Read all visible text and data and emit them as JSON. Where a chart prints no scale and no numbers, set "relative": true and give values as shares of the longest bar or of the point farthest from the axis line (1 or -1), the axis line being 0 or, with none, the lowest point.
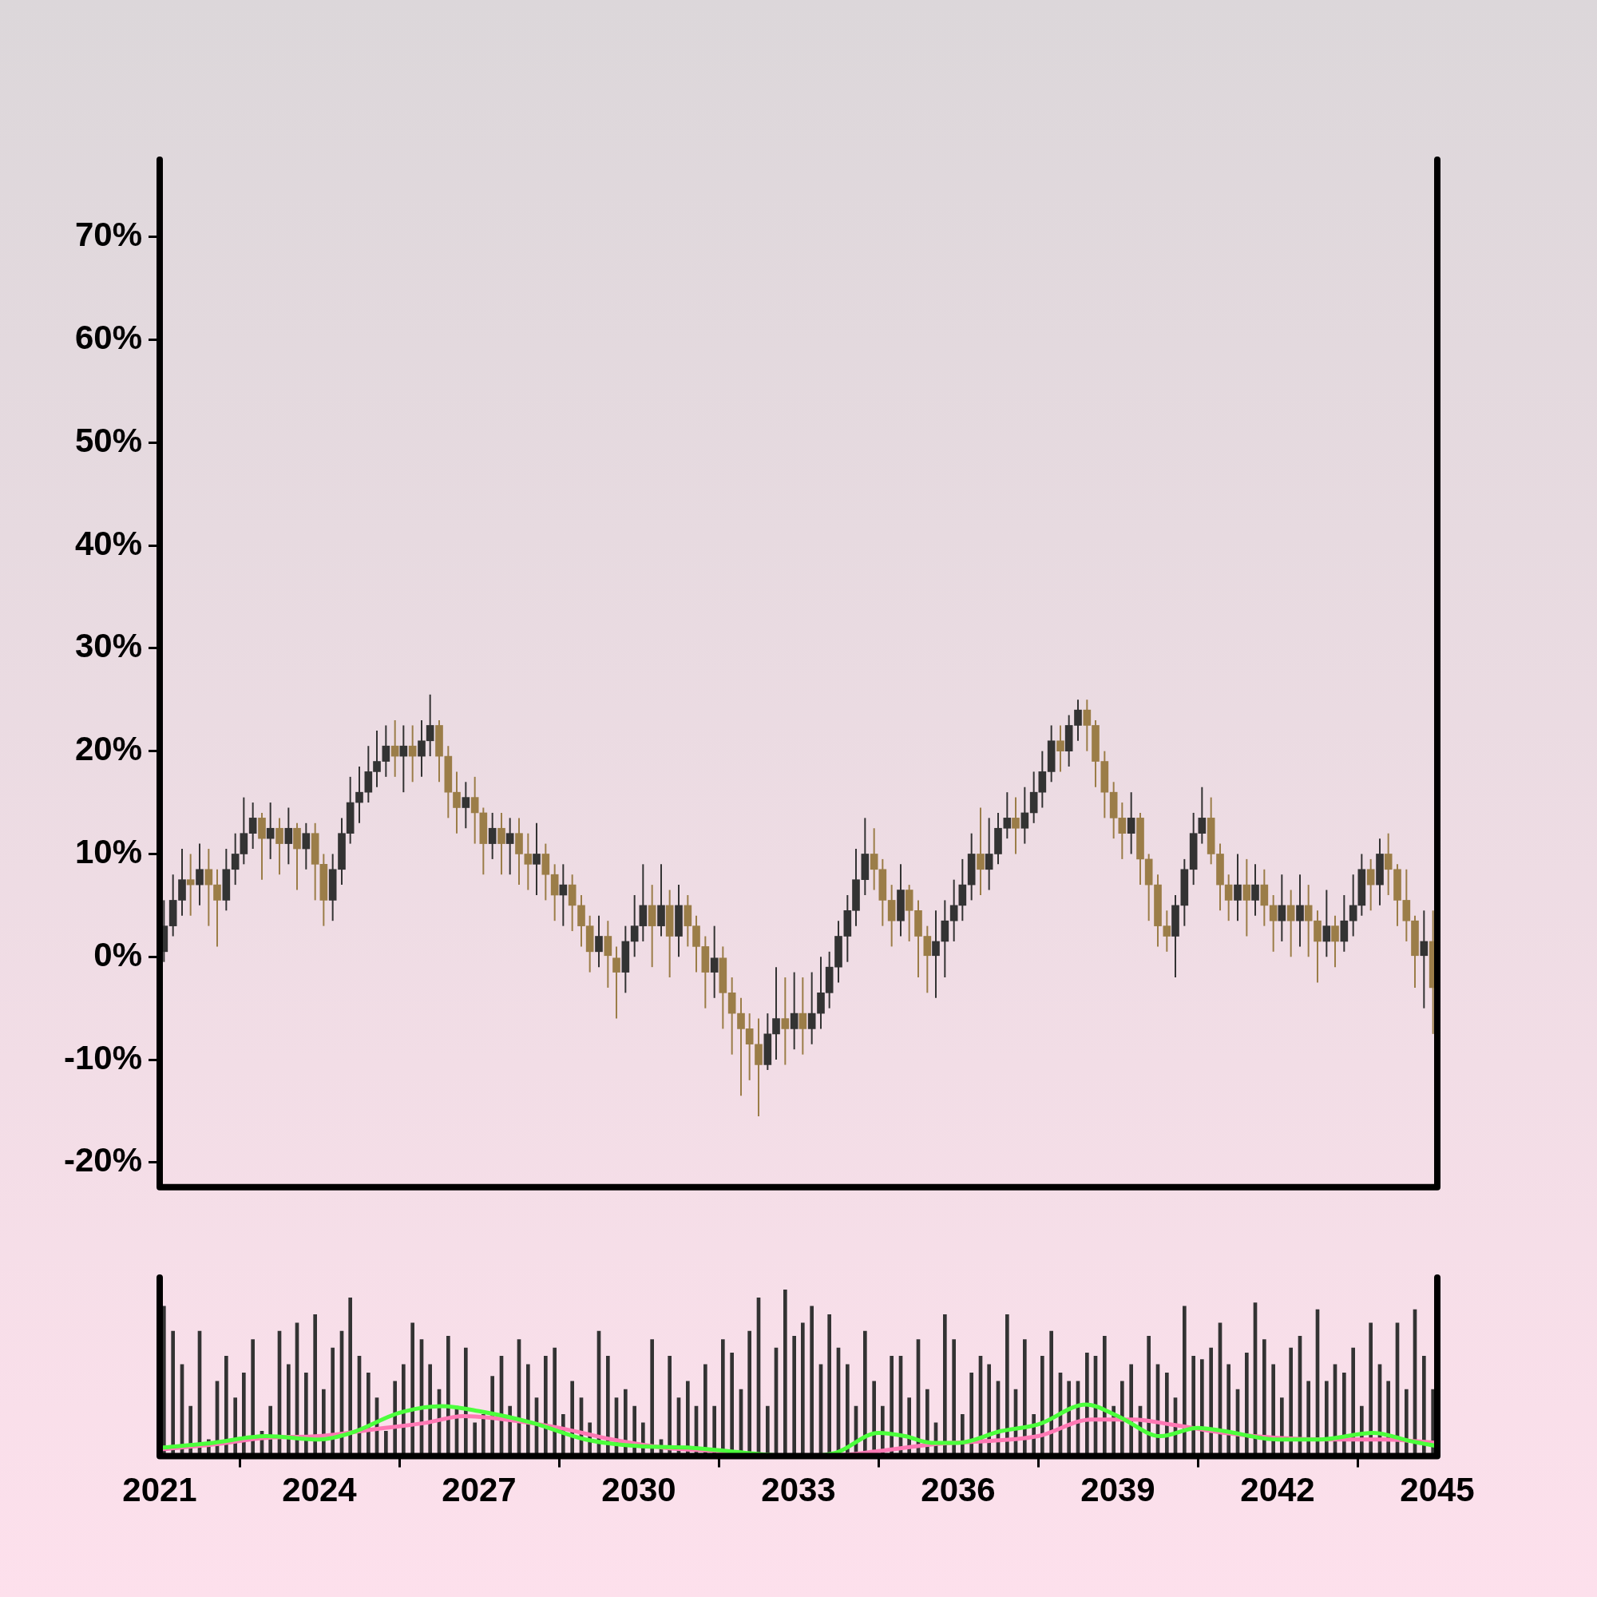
{
  "chart_data": [
    {
      "type": "candlestick",
      "x": [
        2021.08,
        2021.25,
        2021.42,
        2021.58,
        2021.75,
        2021.92,
        2022.08,
        2022.25,
        2022.42,
        2022.58,
        2022.75,
        2022.92,
        2023.08,
        2023.25,
        2023.42,
        2023.58,
        2023.75,
        2023.92,
        2024.08,
        2024.25,
        2024.42,
        2024.58,
        2024.75,
        2024.92,
        2025.08,
        2025.25,
        2025.42,
        2025.58,
        2025.75,
        2025.92,
        2026.08,
        2026.25,
        2026.42,
        2026.58,
        2026.75,
        2026.92,
        2027.08,
        2027.25,
        2027.42,
        2027.58,
        2027.75,
        2027.92,
        2028.08,
        2028.25,
        2028.42,
        2028.58,
        2028.75,
        2028.92,
        2029.08,
        2029.25,
        2029.42,
        2029.58,
        2029.75,
        2029.92,
        2030.08,
        2030.25,
        2030.42,
        2030.58,
        2030.75,
        2030.92,
        2031.08,
        2031.25,
        2031.42,
        2031.58,
        2031.75,
        2031.92,
        2032.08,
        2032.25,
        2032.42,
        2032.58,
        2032.75,
        2032.92,
        2033.08,
        2033.25,
        2033.42,
        2033.58,
        2033.75,
        2033.92,
        2034.08,
        2034.25,
        2034.42,
        2034.58,
        2034.75,
        2034.92,
        2035.08,
        2035.25,
        2035.42,
        2035.58,
        2035.75,
        2035.92,
        2036.08,
        2036.25,
        2036.42,
        2036.58,
        2036.75,
        2036.92,
        2037.08,
        2037.25,
        2037.42,
        2037.58,
        2037.75,
        2037.92,
        2038.08,
        2038.25,
        2038.42,
        2038.58,
        2038.75,
        2038.92,
        2039.08,
        2039.25,
        2039.42,
        2039.58,
        2039.75,
        2039.92,
        2040.08,
        2040.25,
        2040.42,
        2040.58,
        2040.75,
        2040.92,
        2041.08,
        2041.25,
        2041.42,
        2041.58,
        2041.75,
        2041.92,
        2042.08,
        2042.25,
        2042.42,
        2042.58,
        2042.75,
        2042.92,
        2043.08,
        2043.25,
        2043.42,
        2043.58,
        2043.75,
        2043.92,
        2044.08,
        2044.25,
        2044.42,
        2044.58,
        2044.75,
        2044.92
      ],
      "ohlc": [
        [
          0.5,
          5.5,
          -0.5,
          3
        ],
        [
          3,
          8,
          2,
          5.5
        ],
        [
          5.5,
          10.5,
          4,
          7.5
        ],
        [
          7.5,
          10,
          4,
          7
        ],
        [
          7,
          11,
          5,
          8.5
        ],
        [
          8.5,
          10.5,
          3,
          7
        ],
        [
          7,
          8.5,
          1,
          5.5
        ],
        [
          5.5,
          10.5,
          4.5,
          8.5
        ],
        [
          8.5,
          12,
          7,
          10
        ],
        [
          10,
          15.5,
          9,
          12
        ],
        [
          12,
          15,
          10.5,
          13.5
        ],
        [
          13.5,
          14,
          7.5,
          11.5
        ],
        [
          11.5,
          15,
          9.5,
          12.5
        ],
        [
          12.5,
          13.5,
          8,
          11
        ],
        [
          11,
          14.5,
          9,
          12.5
        ],
        [
          12.5,
          13,
          6.5,
          10.5
        ],
        [
          10.5,
          13,
          8.5,
          12
        ],
        [
          12,
          13,
          5.5,
          9
        ],
        [
          9,
          10,
          3,
          5.5
        ],
        [
          5.5,
          10,
          3.5,
          8.5
        ],
        [
          8.5,
          13.5,
          7,
          12
        ],
        [
          12,
          17.5,
          11,
          15
        ],
        [
          15,
          18.5,
          13,
          16
        ],
        [
          16,
          20.5,
          15,
          18
        ],
        [
          18,
          22,
          16.5,
          19
        ],
        [
          19,
          22.5,
          17.5,
          20.5
        ],
        [
          20.5,
          23,
          17.5,
          19.5
        ],
        [
          19.5,
          22.5,
          16,
          20.5
        ],
        [
          20.5,
          22.5,
          17,
          19.5
        ],
        [
          19.5,
          23,
          17.5,
          21
        ],
        [
          21,
          25.5,
          19.5,
          22.5
        ],
        [
          22.5,
          23,
          17,
          19.5
        ],
        [
          19.5,
          20.5,
          13.5,
          16
        ],
        [
          16,
          18,
          12,
          14.5
        ],
        [
          14.5,
          17,
          12.5,
          15.5
        ],
        [
          15.5,
          17.5,
          11,
          14
        ],
        [
          14,
          14.5,
          8,
          11
        ],
        [
          11,
          14,
          9.5,
          12.5
        ],
        [
          12.5,
          14,
          8,
          11
        ],
        [
          11,
          13.5,
          8,
          12
        ],
        [
          12,
          13.5,
          7,
          10
        ],
        [
          10,
          12,
          6.5,
          9
        ],
        [
          9,
          13,
          6,
          10
        ],
        [
          10,
          11,
          5.5,
          8
        ],
        [
          8,
          9,
          3.5,
          6
        ],
        [
          6,
          9,
          3,
          7
        ],
        [
          7,
          8,
          2.5,
          5
        ],
        [
          5,
          6,
          1,
          3
        ],
        [
          3,
          4,
          -1.5,
          0.5
        ],
        [
          0.5,
          4,
          -1,
          2
        ],
        [
          2,
          3.5,
          -3,
          0
        ],
        [
          0,
          1,
          -6,
          -1.5
        ],
        [
          -1.5,
          3,
          -3.5,
          1.5
        ],
        [
          1.5,
          6,
          0,
          3
        ],
        [
          3,
          9,
          1.5,
          5
        ],
        [
          5,
          7,
          -1,
          3
        ],
        [
          3,
          9,
          2,
          5
        ],
        [
          5,
          6.5,
          -2,
          2
        ],
        [
          2,
          7,
          0,
          5
        ],
        [
          5,
          6,
          1,
          3
        ],
        [
          3,
          4,
          -1.5,
          1
        ],
        [
          1,
          2,
          -5,
          -1.5
        ],
        [
          -1.5,
          3,
          -4,
          0
        ],
        [
          0,
          1,
          -7,
          -3.5
        ],
        [
          -3.5,
          -2,
          -9.5,
          -5.5
        ],
        [
          -5.5,
          -4,
          -13.5,
          -7
        ],
        [
          -7,
          -5.5,
          -12,
          -8.5
        ],
        [
          -8.5,
          -6,
          -15.5,
          -10.5
        ],
        [
          -10.5,
          -5.5,
          -11,
          -7.5
        ],
        [
          -7.5,
          -1,
          -10,
          -6
        ],
        [
          -6,
          -2,
          -10.5,
          -7
        ],
        [
          -7,
          -1.5,
          -9,
          -5.5
        ],
        [
          -5.5,
          -2,
          -9.5,
          -7
        ],
        [
          -7,
          -1.5,
          -8.5,
          -5.5
        ],
        [
          -5.5,
          0,
          -7,
          -3.5
        ],
        [
          -3.5,
          0.5,
          -5,
          -1
        ],
        [
          -1,
          3.5,
          -2.5,
          2
        ],
        [
          2,
          6,
          -0.5,
          4.5
        ],
        [
          4.5,
          10.5,
          3,
          7.5
        ],
        [
          7.5,
          13.5,
          6,
          10
        ],
        [
          10,
          12.5,
          6.5,
          8.5
        ],
        [
          8.5,
          9.5,
          3,
          5.5
        ],
        [
          5.5,
          7,
          1,
          3.5
        ],
        [
          3.5,
          9,
          2,
          6.5
        ],
        [
          6.5,
          7,
          1.5,
          4.5
        ],
        [
          4.5,
          5.5,
          -2,
          2
        ],
        [
          2,
          3,
          -3.5,
          0
        ],
        [
          0,
          4.5,
          -4,
          1.5
        ],
        [
          1.5,
          5.5,
          -2,
          3.5
        ],
        [
          3.5,
          7.5,
          1.5,
          5
        ],
        [
          5,
          9.5,
          3.5,
          7
        ],
        [
          7,
          12,
          5.5,
          10
        ],
        [
          10,
          14.5,
          6,
          8.5
        ],
        [
          8.5,
          13.5,
          6.5,
          10
        ],
        [
          10,
          14,
          9,
          12.5
        ],
        [
          12.5,
          16,
          11.5,
          13.5
        ],
        [
          13.5,
          15.5,
          10,
          12.5
        ],
        [
          12.5,
          16.5,
          11,
          14
        ],
        [
          14,
          18,
          13,
          16
        ],
        [
          16,
          20,
          14.5,
          18
        ],
        [
          18,
          22.5,
          17,
          21
        ],
        [
          21,
          22.5,
          18,
          20
        ],
        [
          20,
          23.5,
          18.5,
          22.5
        ],
        [
          22.5,
          25,
          21,
          24
        ],
        [
          24,
          25,
          20,
          22.5
        ],
        [
          22.5,
          23,
          16.5,
          19
        ],
        [
          19,
          20,
          13.5,
          16
        ],
        [
          16,
          17,
          11.5,
          13.5
        ],
        [
          13.5,
          15,
          9.5,
          12
        ],
        [
          12,
          16,
          10,
          13.5
        ],
        [
          13.5,
          14,
          7,
          9.5
        ],
        [
          9.5,
          10,
          3.5,
          7
        ],
        [
          7,
          8,
          1,
          3
        ],
        [
          3,
          4.5,
          0.5,
          2
        ],
        [
          2,
          6,
          -2,
          5
        ],
        [
          5,
          9.5,
          3,
          8.5
        ],
        [
          8.5,
          14,
          7,
          12
        ],
        [
          12,
          16.5,
          11,
          13.5
        ],
        [
          13.5,
          15.5,
          9,
          10
        ],
        [
          10,
          11,
          4.5,
          7
        ],
        [
          7,
          8,
          3.5,
          5.5
        ],
        [
          5.5,
          10,
          3.5,
          7
        ],
        [
          7,
          9.5,
          2,
          5.5
        ],
        [
          5.5,
          9,
          4,
          7
        ],
        [
          7,
          8.5,
          3,
          5
        ],
        [
          5,
          6,
          0.5,
          3.5
        ],
        [
          3.5,
          8,
          1.5,
          5
        ],
        [
          5,
          6.5,
          0,
          3.5
        ],
        [
          3.5,
          8,
          1,
          5
        ],
        [
          5,
          7,
          0,
          3.5
        ],
        [
          3.5,
          4.5,
          -2.5,
          1.5
        ],
        [
          1.5,
          6.5,
          0,
          3
        ],
        [
          3,
          4,
          -1,
          1.5
        ],
        [
          1.5,
          6,
          0.5,
          3.5
        ],
        [
          3.5,
          8,
          2,
          5
        ],
        [
          5,
          10,
          4,
          8.5
        ],
        [
          8.5,
          9.5,
          4.5,
          7
        ],
        [
          7,
          11.5,
          5,
          10
        ],
        [
          10,
          12,
          6,
          8.5
        ],
        [
          8.5,
          9,
          3,
          5.5
        ],
        [
          5.5,
          8.5,
          1.5,
          3.5
        ],
        [
          3.5,
          4,
          -3,
          0
        ],
        [
          0,
          4.5,
          -5,
          1.5
        ],
        [
          1.5,
          4.5,
          -7.5,
          -3
        ]
      ],
      "colors": [
        "#333333",
        "#333333",
        "#333333",
        "#9b7d48",
        "#333333",
        "#9b7d48",
        "#9b7d48",
        "#333333",
        "#333333",
        "#333333",
        "#333333",
        "#9b7d48",
        "#333333",
        "#9b7d48",
        "#333333",
        "#9b7d48",
        "#333333",
        "#9b7d48",
        "#9b7d48",
        "#333333",
        "#333333",
        "#333333",
        "#333333",
        "#333333",
        "#333333",
        "#333333",
        "#9b7d48",
        "#333333",
        "#9b7d48",
        "#333333",
        "#333333",
        "#9b7d48",
        "#9b7d48",
        "#9b7d48",
        "#333333",
        "#9b7d48",
        "#9b7d48",
        "#333333",
        "#9b7d48",
        "#333333",
        "#9b7d48",
        "#9b7d48",
        "#333333",
        "#9b7d48",
        "#9b7d48",
        "#333333",
        "#9b7d48",
        "#9b7d48",
        "#9b7d48",
        "#333333",
        "#9b7d48",
        "#9b7d48",
        "#333333",
        "#333333",
        "#333333",
        "#9b7d48",
        "#333333",
        "#9b7d48",
        "#333333",
        "#9b7d48",
        "#9b7d48",
        "#9b7d48",
        "#333333",
        "#9b7d48",
        "#9b7d48",
        "#9b7d48",
        "#9b7d48",
        "#9b7d48",
        "#333333",
        "#333333",
        "#9b7d48",
        "#333333",
        "#9b7d48",
        "#333333",
        "#333333",
        "#333333",
        "#333333",
        "#333333",
        "#333333",
        "#333333",
        "#9b7d48",
        "#9b7d48",
        "#9b7d48",
        "#333333",
        "#9b7d48",
        "#9b7d48",
        "#9b7d48",
        "#333333",
        "#333333",
        "#333333",
        "#333333",
        "#333333",
        "#9b7d48",
        "#333333",
        "#333333",
        "#333333",
        "#9b7d48",
        "#333333",
        "#333333",
        "#333333",
        "#333333",
        "#9b7d48",
        "#333333",
        "#333333",
        "#9b7d48",
        "#9b7d48",
        "#9b7d48",
        "#9b7d48",
        "#9b7d48",
        "#333333",
        "#9b7d48",
        "#9b7d48",
        "#9b7d48",
        "#9b7d48",
        "#333333",
        "#333333",
        "#333333",
        "#333333",
        "#9b7d48",
        "#9b7d48",
        "#9b7d48",
        "#333333",
        "#9b7d48",
        "#333333",
        "#9b7d48",
        "#9b7d48",
        "#333333",
        "#9b7d48",
        "#333333",
        "#9b7d48",
        "#9b7d48",
        "#333333",
        "#9b7d48",
        "#333333",
        "#333333",
        "#333333",
        "#9b7d48",
        "#333333",
        "#9b7d48",
        "#9b7d48",
        "#9b7d48",
        "#9b7d48",
        "#333333",
        "#9b7d48"
      ],
      "xlim": [
        2021,
        2045
      ],
      "ylim": [
        -22.4,
        77.5
      ],
      "yticks": [
        {
          "value": -20,
          "label": "-20%"
        },
        {
          "value": -10,
          "label": "-10%"
        },
        {
          "value": 0,
          "label": "0%"
        },
        {
          "value": 10,
          "label": "10%"
        },
        {
          "value": 20,
          "label": "20%"
        },
        {
          "value": 30,
          "label": "30%"
        },
        {
          "value": 40,
          "label": "40%"
        },
        {
          "value": 50,
          "label": "50%"
        },
        {
          "value": 60,
          "label": "60%"
        },
        {
          "value": 70,
          "label": "70%"
        }
      ],
      "tick_labels": "y"
    },
    {
      "type": "bar",
      "relative": true,
      "x": [
        2021.08,
        2021.25,
        2021.42,
        2021.58,
        2021.75,
        2021.92,
        2022.08,
        2022.25,
        2022.42,
        2022.58,
        2022.75,
        2022.92,
        2023.08,
        2023.25,
        2023.42,
        2023.58,
        2023.75,
        2023.92,
        2024.08,
        2024.25,
        2024.42,
        2024.58,
        2024.75,
        2024.92,
        2025.08,
        2025.25,
        2025.42,
        2025.58,
        2025.75,
        2025.92,
        2026.08,
        2026.25,
        2026.42,
        2026.58,
        2026.75,
        2026.92,
        2027.08,
        2027.25,
        2027.42,
        2027.58,
        2027.75,
        2027.92,
        2028.08,
        2028.25,
        2028.42,
        2028.58,
        2028.75,
        2028.92,
        2029.08,
        2029.25,
        2029.42,
        2029.58,
        2029.75,
        2029.92,
        2030.08,
        2030.25,
        2030.42,
        2030.58,
        2030.75,
        2030.92,
        2031.08,
        2031.25,
        2031.42,
        2031.58,
        2031.75,
        2031.92,
        2032.08,
        2032.25,
        2032.42,
        2032.58,
        2032.75,
        2032.92,
        2033.08,
        2033.25,
        2033.42,
        2033.58,
        2033.75,
        2033.92,
        2034.08,
        2034.25,
        2034.42,
        2034.58,
        2034.75,
        2034.92,
        2035.08,
        2035.25,
        2035.42,
        2035.58,
        2035.75,
        2035.92,
        2036.08,
        2036.25,
        2036.42,
        2036.58,
        2036.75,
        2036.92,
        2037.08,
        2037.25,
        2037.42,
        2037.58,
        2037.75,
        2037.92,
        2038.08,
        2038.25,
        2038.42,
        2038.58,
        2038.75,
        2038.92,
        2039.08,
        2039.25,
        2039.42,
        2039.58,
        2039.75,
        2039.92,
        2040.08,
        2040.25,
        2040.42,
        2040.58,
        2040.75,
        2040.92,
        2041.08,
        2041.25,
        2041.42,
        2041.58,
        2041.75,
        2041.92,
        2042.08,
        2042.25,
        2042.42,
        2042.58,
        2042.75,
        2042.92,
        2043.08,
        2043.25,
        2043.42,
        2043.58,
        2043.75,
        2043.92,
        2044.08,
        2044.25,
        2044.42,
        2044.58,
        2044.75,
        2044.92
      ],
      "series": [
        {
          "type": "bar",
          "color": "#333333",
          "values": [
            0.9,
            0.75,
            0.55,
            0.3,
            0.75,
            0.1,
            0.45,
            0.6,
            0.35,
            0.5,
            0.7,
            0.15,
            0.3,
            0.75,
            0.55,
            0.8,
            0.5,
            0.85,
            0.4,
            0.65,
            0.75,
            0.95,
            0.6,
            0.5,
            0.35,
            0.15,
            0.45,
            0.55,
            0.8,
            0.7,
            0.55,
            0.4,
            0.72,
            0.3,
            0.65,
            0.2,
            0.25,
            0.48,
            0.6,
            0.3,
            0.7,
            0.55,
            0.35,
            0.6,
            0.65,
            0.25,
            0.45,
            0.35,
            0.2,
            0.75,
            0.6,
            0.35,
            0.4,
            0.3,
            0.2,
            0.7,
            0.1,
            0.6,
            0.35,
            0.45,
            0.3,
            0.55,
            0.3,
            0.7,
            0.62,
            0.4,
            0.75,
            0.95,
            0.3,
            0.65,
            1,
            0.72,
            0.8,
            0.9,
            0.55,
            0.85,
            0.65,
            0.55,
            0.3,
            0.75,
            0.45,
            0.3,
            0.6,
            0.6,
            0.35,
            0.7,
            0.4,
            0.2,
            0.85,
            0.7,
            0.25,
            0.5,
            0.6,
            0.55,
            0.45,
            0.85,
            0.4,
            0.7,
            0.25,
            0.6,
            0.75,
            0.5,
            0.45,
            0.45,
            0.62,
            0.6,
            0.72,
            0.3,
            0.45,
            0.55,
            0.3,
            0.72,
            0.55,
            0.5,
            0.35,
            0.9,
            0.6,
            0.58,
            0.65,
            0.8,
            0.55,
            0.4,
            0.62,
            0.92,
            0.7,
            0.55,
            0.35,
            0.65,
            0.72,
            0.45,
            0.88,
            0.45,
            0.55,
            0.5,
            0.65,
            0.3,
            0.8,
            0.55,
            0.45,
            0.8,
            0.4,
            0.88,
            0.6,
            0.4
          ]
        },
        {
          "type": "line",
          "color": "#4cff3c",
          "x": [
            2021,
            2022,
            2023,
            2024,
            2024.6,
            2025.5,
            2026.3,
            2027,
            2028,
            2029,
            2030,
            2031,
            2032,
            2033,
            2033.7,
            2034.5,
            2035,
            2035.5,
            2036,
            2036.8,
            2037.5,
            2038.4,
            2039,
            2039.8,
            2040.5,
            2041,
            2042,
            2042.8,
            2043.8,
            2044.5,
            2045
          ],
          "values": [
            0.05,
            0.08,
            0.12,
            0.1,
            0.14,
            0.26,
            0.3,
            0.27,
            0.2,
            0.1,
            0.06,
            0.05,
            0.02,
            0,
            0.02,
            0.14,
            0.12,
            0.08,
            0.08,
            0.15,
            0.19,
            0.31,
            0.24,
            0.12,
            0.17,
            0.15,
            0.1,
            0.1,
            0.14,
            0.09,
            0.06
          ]
        },
        {
          "type": "line",
          "color": "#ff78b4",
          "x": [
            2021,
            2022,
            2023,
            2024,
            2025,
            2026,
            2026.7,
            2027.5,
            2028.5,
            2029.5,
            2030.5,
            2031.5,
            2032.5,
            2033.5,
            2034.5,
            2035.5,
            2036.5,
            2037.5,
            2038.5,
            2039.3,
            2040,
            2041,
            2042,
            2043,
            2044,
            2045
          ],
          "values": [
            0.04,
            0.07,
            0.11,
            0.12,
            0.16,
            0.2,
            0.24,
            0.22,
            0.17,
            0.1,
            0.05,
            0.03,
            0,
            0,
            0.03,
            0.07,
            0.09,
            0.12,
            0.22,
            0.22,
            0.19,
            0.14,
            0.11,
            0.1,
            0.1,
            0.08
          ]
        }
      ],
      "xlim": [
        2021,
        2045
      ],
      "xticks": [
        2021,
        2024,
        2027,
        2030,
        2033,
        2036,
        2039,
        2042,
        2045
      ],
      "tick_labels": "x"
    }
  ]
}
